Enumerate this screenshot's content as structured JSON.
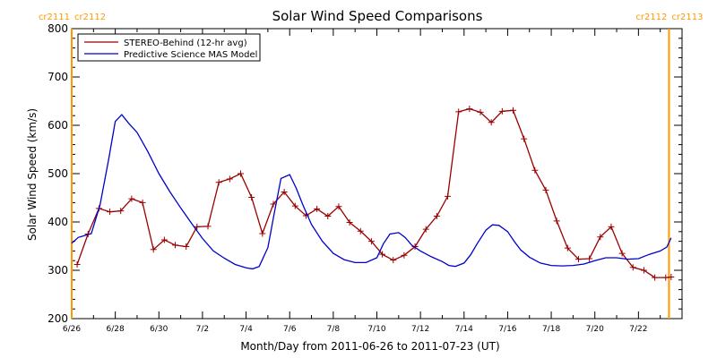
{
  "chart_data": {
    "type": "line",
    "title": "Solar Wind Speed Comparisons",
    "xlabel": "Month/Day from 2011-06-26 to 2011-07-23 (UT)",
    "ylabel": "Solar Wind Speed (km/s)",
    "xlim": [
      0,
      28
    ],
    "ylim": [
      200,
      800
    ],
    "yticks": [
      200,
      300,
      400,
      500,
      600,
      700,
      800
    ],
    "xticks": [
      {
        "x": 0,
        "label": "6/26"
      },
      {
        "x": 2,
        "label": "6/28"
      },
      {
        "x": 4,
        "label": "6/30"
      },
      {
        "x": 6,
        "label": "7/2"
      },
      {
        "x": 8,
        "label": "7/4"
      },
      {
        "x": 10,
        "label": "7/6"
      },
      {
        "x": 12,
        "label": "7/8"
      },
      {
        "x": 14,
        "label": "7/10"
      },
      {
        "x": 16,
        "label": "7/12"
      },
      {
        "x": 18,
        "label": "7/14"
      },
      {
        "x": 20,
        "label": "7/16"
      },
      {
        "x": 22,
        "label": "7/18"
      },
      {
        "x": 24,
        "label": "7/20"
      },
      {
        "x": 26,
        "label": "7/22"
      }
    ],
    "carrington_markers": [
      {
        "x": 0,
        "left_label": "cr2111",
        "right_label": "cr2112",
        "color": "#FF9900"
      },
      {
        "x": 27.4,
        "left_label": "cr2112",
        "right_label": "cr2113",
        "color": "#FF9900"
      }
    ],
    "legend_position": "top-left",
    "series": [
      {
        "name": "STEREO-Behind (12-hr avg)",
        "color": "#990000",
        "marker": "plus",
        "x": [
          0.25,
          0.75,
          1.25,
          1.75,
          2.25,
          2.75,
          3.25,
          3.75,
          4.25,
          4.75,
          5.25,
          5.75,
          6.25,
          6.75,
          7.25,
          7.75,
          8.25,
          8.75,
          9.25,
          9.75,
          10.25,
          10.75,
          11.25,
          11.75,
          12.25,
          12.75,
          13.25,
          13.75,
          14.25,
          14.75,
          15.25,
          15.75,
          16.25,
          16.75,
          17.25,
          17.75,
          18.25,
          18.75,
          19.25,
          19.75,
          20.25,
          20.75,
          21.25,
          21.75,
          22.25,
          22.75,
          23.25,
          23.75,
          24.25,
          24.75,
          25.25,
          25.75,
          26.25,
          26.75,
          27.25,
          27.5
        ],
        "values": [
          312,
          375,
          428,
          421,
          423,
          448,
          440,
          343,
          363,
          352,
          349,
          390,
          391,
          482,
          489,
          500,
          451,
          376,
          437,
          462,
          433,
          413,
          427,
          412,
          432,
          399,
          381,
          360,
          333,
          321,
          331,
          349,
          385,
          412,
          453,
          628,
          634,
          627,
          606,
          629,
          631,
          572,
          507,
          466,
          402,
          346,
          323,
          324,
          369,
          390,
          335,
          306,
          300,
          285,
          285,
          286
        ]
      },
      {
        "name": "Predictive Science MAS Model",
        "color": "#0000CC",
        "marker": "none",
        "x": [
          0,
          0.3,
          0.6,
          0.9,
          1.3,
          1.7,
          2.0,
          2.3,
          2.6,
          3.0,
          3.5,
          4.0,
          4.5,
          5.0,
          5.5,
          6.0,
          6.5,
          7.0,
          7.5,
          8.0,
          8.3,
          8.6,
          9.0,
          9.3,
          9.6,
          10.0,
          10.3,
          10.6,
          11.0,
          11.5,
          12.0,
          12.5,
          13.0,
          13.5,
          14.0,
          14.3,
          14.6,
          15.0,
          15.3,
          15.6,
          16.0,
          16.5,
          17.0,
          17.3,
          17.6,
          18.0,
          18.3,
          18.6,
          19.0,
          19.3,
          19.6,
          20.0,
          20.3,
          20.6,
          21.0,
          21.5,
          22.0,
          22.5,
          23.0,
          23.5,
          24.0,
          24.5,
          25.0,
          25.5,
          26.0,
          26.5,
          27.0,
          27.3,
          27.5
        ],
        "values": [
          356,
          368,
          372,
          376,
          435,
          530,
          608,
          622,
          605,
          585,
          545,
          500,
          463,
          429,
          397,
          366,
          340,
          325,
          312,
          305,
          303,
          308,
          347,
          420,
          490,
          498,
          470,
          436,
          395,
          360,
          335,
          322,
          316,
          316,
          326,
          355,
          375,
          378,
          368,
          352,
          340,
          328,
          318,
          310,
          308,
          315,
          332,
          355,
          383,
          394,
          393,
          380,
          360,
          342,
          327,
          315,
          310,
          309,
          310,
          313,
          320,
          326,
          326,
          323,
          324,
          333,
          340,
          348,
          367
        ]
      }
    ]
  }
}
